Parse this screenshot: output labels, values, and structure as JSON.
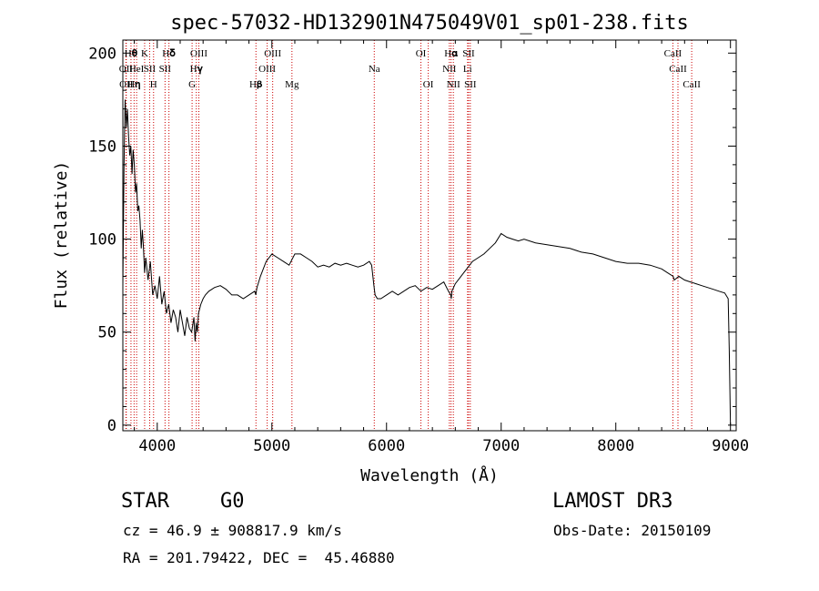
{
  "chart_data": {
    "type": "line",
    "title": "spec-57032-HD132901N475049V01_sp01-238.fits",
    "xlabel": "Wavelength (Å)",
    "ylabel": "Flux (relative)",
    "xlim": [
      3700,
      9050
    ],
    "ylim": [
      -3,
      207
    ],
    "x_ticks": [
      4000,
      5000,
      6000,
      7000,
      8000,
      9000
    ],
    "y_ticks": [
      0,
      50,
      100,
      150,
      200
    ],
    "grid": false,
    "line_color": "#000000",
    "marker_color": "#cc0000",
    "series": [
      {
        "x": [
          3700,
          3710,
          3720,
          3730,
          3740,
          3750,
          3760,
          3770,
          3780,
          3790,
          3800,
          3810,
          3820,
          3830,
          3840,
          3850,
          3860,
          3870,
          3880,
          3890,
          3900,
          3920,
          3940,
          3960,
          3980,
          4000,
          4020,
          4040,
          4060,
          4080,
          4100,
          4120,
          4140,
          4160,
          4180,
          4200,
          4220,
          4240,
          4260,
          4280,
          4300,
          4320,
          4330,
          4340,
          4350,
          4360,
          4380,
          4400,
          4420,
          4450,
          4500,
          4550,
          4600,
          4650,
          4700,
          4750,
          4800,
          4850,
          4860,
          4870,
          4900,
          4950,
          5000,
          5050,
          5100,
          5150,
          5200,
          5250,
          5300,
          5350,
          5400,
          5450,
          5500,
          5550,
          5600,
          5650,
          5700,
          5750,
          5800,
          5850,
          5870,
          5890,
          5900,
          5920,
          5950,
          6000,
          6050,
          6100,
          6150,
          6200,
          6250,
          6300,
          6350,
          6400,
          6450,
          6500,
          6540,
          6560,
          6565,
          6570,
          6600,
          6650,
          6700,
          6750,
          6800,
          6850,
          6900,
          6950,
          7000,
          7050,
          7100,
          7150,
          7200,
          7300,
          7400,
          7500,
          7600,
          7700,
          7800,
          7900,
          8000,
          8100,
          8200,
          8300,
          8400,
          8450,
          8500,
          8510,
          8550,
          8600,
          8650,
          8700,
          8750,
          8800,
          8850,
          8900,
          8950,
          8980,
          8990,
          9000
        ],
        "y": [
          75,
          140,
          175,
          160,
          170,
          155,
          145,
          150,
          135,
          148,
          140,
          125,
          130,
          115,
          118,
          110,
          95,
          105,
          95,
          82,
          90,
          78,
          88,
          70,
          75,
          68,
          80,
          65,
          72,
          60,
          65,
          55,
          62,
          58,
          50,
          62,
          55,
          48,
          58,
          52,
          50,
          58,
          45,
          55,
          50,
          60,
          65,
          68,
          70,
          72,
          74,
          75,
          73,
          70,
          70,
          68,
          70,
          72,
          70,
          74,
          80,
          88,
          92,
          90,
          88,
          86,
          92,
          92,
          90,
          88,
          85,
          86,
          85,
          87,
          86,
          87,
          86,
          85,
          86,
          88,
          86,
          75,
          70,
          68,
          68,
          70,
          72,
          70,
          72,
          74,
          75,
          72,
          74,
          73,
          75,
          77,
          72,
          70,
          68,
          72,
          76,
          80,
          84,
          88,
          90,
          92,
          95,
          98,
          103,
          101,
          100,
          99,
          100,
          98,
          97,
          96,
          95,
          93,
          92,
          90,
          88,
          87,
          87,
          86,
          84,
          82,
          80,
          78,
          80,
          78,
          77,
          76,
          75,
          74,
          73,
          72,
          71,
          68,
          40,
          0
        ]
      }
    ],
    "line_markers": [
      {
        "x": 3727,
        "label": "OII",
        "row": 2
      },
      {
        "x": 3730,
        "label": "OII",
        "row": 3
      },
      {
        "x": 3771,
        "label": "H𝛉",
        "row": 1
      },
      {
        "x": 3798,
        "label": "H𝛈",
        "row": 3
      },
      {
        "x": 3820,
        "label": "HeI",
        "row": 2
      },
      {
        "x": 3890,
        "label": "K",
        "row": 1
      },
      {
        "x": 3934,
        "label": "SII",
        "row": 2
      },
      {
        "x": 3968,
        "label": "H",
        "row": 3
      },
      {
        "x": 4102,
        "label": "H𝛅",
        "row": 1
      },
      {
        "x": 4068,
        "label": "SII",
        "row": 2
      },
      {
        "x": 4304,
        "label": "G",
        "row": 3
      },
      {
        "x": 4341,
        "label": "H𝛄",
        "row": 2
      },
      {
        "x": 4363,
        "label": "OIII",
        "row": 1
      },
      {
        "x": 4861,
        "label": "H𝛃",
        "row": 3
      },
      {
        "x": 4959,
        "label": "OIII",
        "row": 2
      },
      {
        "x": 5007,
        "label": "OIII",
        "row": 1
      },
      {
        "x": 5175,
        "label": "Mg",
        "row": 3
      },
      {
        "x": 5893,
        "label": "Na",
        "row": 2
      },
      {
        "x": 6300,
        "label": "OI",
        "row": 1
      },
      {
        "x": 6364,
        "label": "OI",
        "row": 3
      },
      {
        "x": 6548,
        "label": "NII",
        "row": 2
      },
      {
        "x": 6563,
        "label": "H𝛂",
        "row": 1
      },
      {
        "x": 6583,
        "label": "NII",
        "row": 3
      },
      {
        "x": 6707,
        "label": "Li",
        "row": 2
      },
      {
        "x": 6716,
        "label": "SII",
        "row": 1
      },
      {
        "x": 6731,
        "label": "SII",
        "row": 3
      },
      {
        "x": 8498,
        "label": "CaII",
        "row": 1
      },
      {
        "x": 8542,
        "label": "CaII",
        "row": 2
      },
      {
        "x": 8662,
        "label": "CaII",
        "row": 3
      }
    ]
  },
  "footer": {
    "class_label": "STAR",
    "subclass": "G0",
    "survey": "LAMOST DR3",
    "cz": "cz = 46.9 ± 908817.9 km/s",
    "obs_date": "Obs-Date: 20150109",
    "coords": "RA = 201.79422, DEC =  45.46880"
  }
}
